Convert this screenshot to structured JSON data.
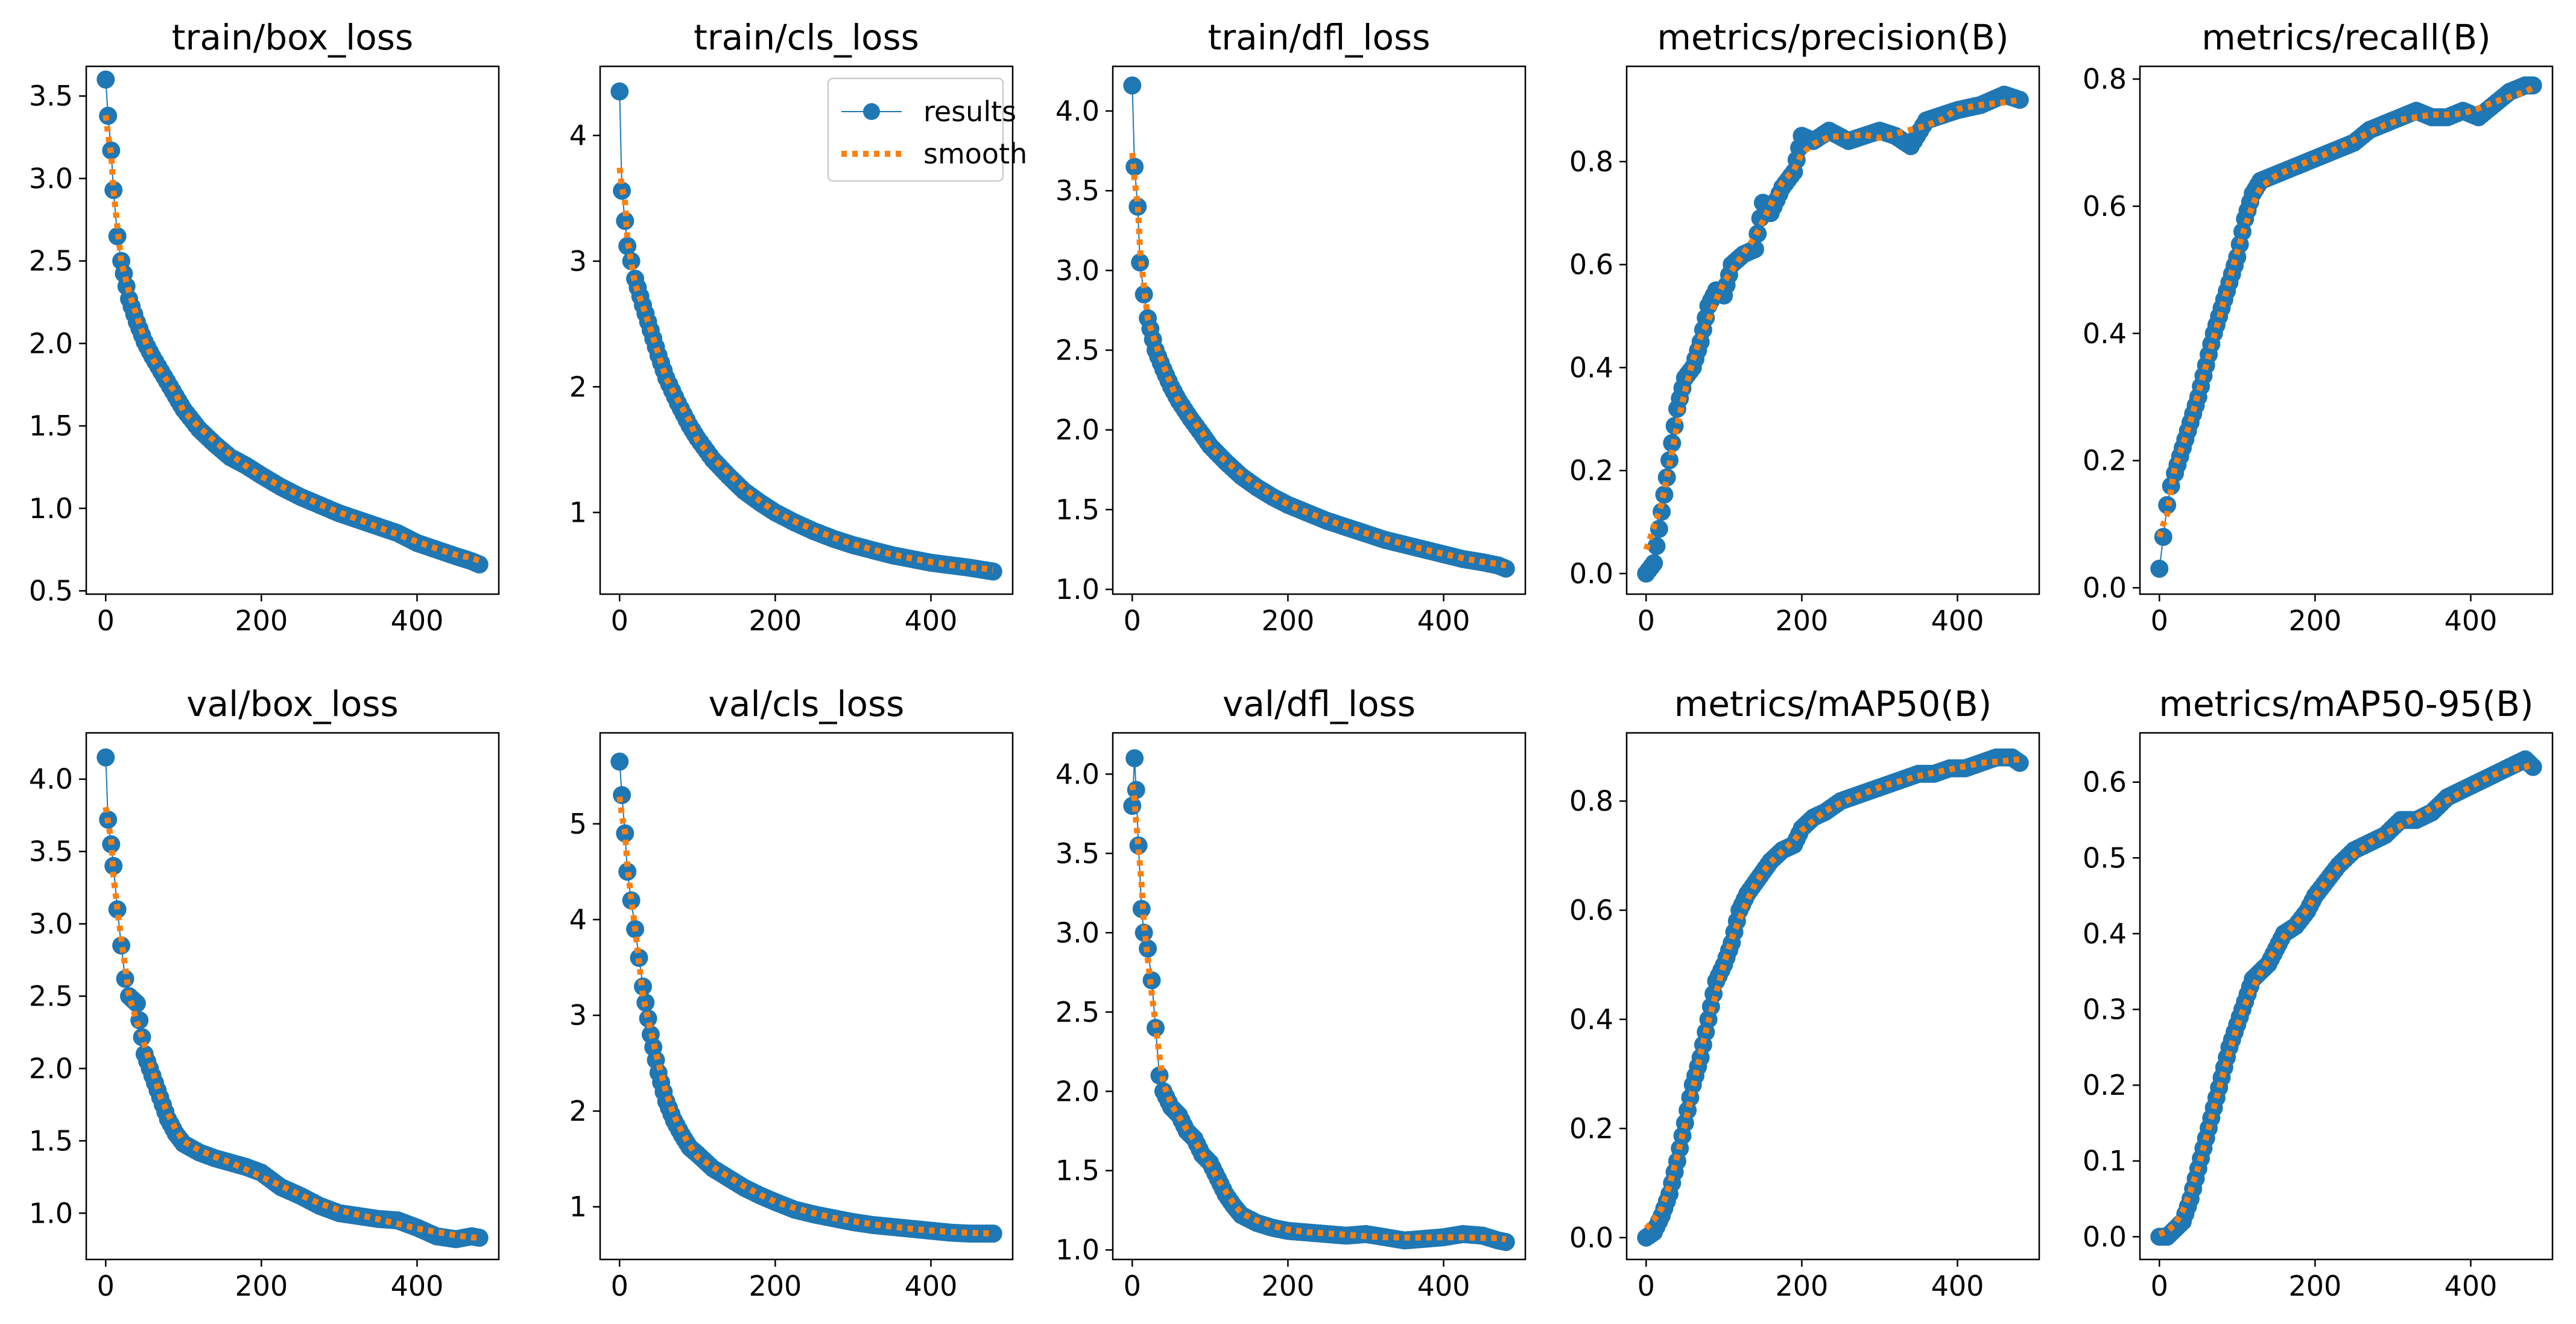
{
  "colors": {
    "results": "#1f77b4",
    "smooth": "#ff7f0e",
    "axes": "#000000",
    "background": "#ffffff"
  },
  "legend": {
    "labels": [
      "results",
      "smooth"
    ],
    "placement": "upper-right",
    "in_panel": 1
  },
  "chart_data": [
    {
      "type": "line",
      "title": "train/box_loss",
      "xlim": [
        -25,
        505
      ],
      "ylim": [
        0.48,
        3.68
      ],
      "xticks": [
        0,
        200,
        400
      ],
      "yticks": [
        0.5,
        1.0,
        1.5,
        2.0,
        2.5,
        3.0,
        3.5
      ],
      "ytick_labels": [
        "0.5",
        "1.0",
        "1.5",
        "2.0",
        "2.5",
        "3.0",
        "3.5"
      ],
      "x": [
        0,
        3,
        7,
        10,
        15,
        20,
        30,
        40,
        50,
        60,
        75,
        90,
        100,
        120,
        140,
        160,
        180,
        200,
        225,
        250,
        275,
        300,
        325,
        350,
        375,
        400,
        425,
        450,
        470,
        480
      ],
      "y": [
        3.6,
        3.38,
        3.17,
        2.93,
        2.65,
        2.5,
        2.27,
        2.13,
        2.01,
        1.92,
        1.8,
        1.68,
        1.6,
        1.48,
        1.39,
        1.31,
        1.26,
        1.2,
        1.13,
        1.07,
        1.02,
        0.97,
        0.93,
        0.89,
        0.85,
        0.79,
        0.75,
        0.71,
        0.68,
        0.66
      ]
    },
    {
      "type": "line",
      "title": "train/cls_loss",
      "xlim": [
        -25,
        505
      ],
      "ylim": [
        0.35,
        4.55
      ],
      "xticks": [
        0,
        200,
        400
      ],
      "yticks": [
        1,
        2,
        3,
        4
      ],
      "ytick_labels": [
        "1",
        "2",
        "3",
        "4"
      ],
      "x": [
        0,
        3,
        7,
        10,
        15,
        20,
        30,
        40,
        50,
        60,
        75,
        90,
        100,
        120,
        140,
        160,
        180,
        200,
        225,
        250,
        275,
        300,
        325,
        350,
        375,
        400,
        425,
        450,
        470,
        480
      ],
      "y": [
        4.35,
        3.56,
        3.32,
        3.12,
        3.0,
        2.86,
        2.65,
        2.45,
        2.25,
        2.07,
        1.87,
        1.69,
        1.59,
        1.42,
        1.29,
        1.17,
        1.08,
        1.0,
        0.92,
        0.85,
        0.79,
        0.74,
        0.7,
        0.66,
        0.63,
        0.6,
        0.58,
        0.56,
        0.54,
        0.53
      ]
    },
    {
      "type": "line",
      "title": "train/dfl_loss",
      "xlim": [
        -25,
        505
      ],
      "ylim": [
        0.97,
        4.28
      ],
      "xticks": [
        0,
        200,
        400
      ],
      "yticks": [
        1.0,
        1.5,
        2.0,
        2.5,
        3.0,
        3.5,
        4.0
      ],
      "ytick_labels": [
        "1.0",
        "1.5",
        "2.0",
        "2.5",
        "3.0",
        "3.5",
        "4.0"
      ],
      "x": [
        0,
        3,
        7,
        10,
        15,
        20,
        30,
        40,
        50,
        60,
        75,
        90,
        100,
        120,
        140,
        160,
        180,
        200,
        225,
        250,
        275,
        300,
        325,
        350,
        375,
        400,
        425,
        450,
        470,
        480
      ],
      "y": [
        4.16,
        3.65,
        3.4,
        3.05,
        2.85,
        2.7,
        2.5,
        2.38,
        2.27,
        2.18,
        2.07,
        1.97,
        1.9,
        1.8,
        1.71,
        1.64,
        1.58,
        1.53,
        1.48,
        1.43,
        1.39,
        1.35,
        1.31,
        1.28,
        1.25,
        1.22,
        1.19,
        1.17,
        1.15,
        1.13
      ]
    },
    {
      "type": "line",
      "title": "metrics/precision(B)",
      "xlim": [
        -25,
        505
      ],
      "ylim": [
        -0.04,
        0.985
      ],
      "xticks": [
        0,
        200,
        400
      ],
      "yticks": [
        0.0,
        0.2,
        0.4,
        0.6,
        0.8
      ],
      "ytick_labels": [
        "0.0",
        "0.2",
        "0.4",
        "0.6",
        "0.8"
      ],
      "x": [
        0,
        10,
        20,
        30,
        40,
        50,
        60,
        70,
        80,
        90,
        100,
        110,
        125,
        140,
        150,
        160,
        175,
        190,
        200,
        215,
        235,
        260,
        280,
        300,
        320,
        340,
        360,
        380,
        400,
        430,
        460,
        480
      ],
      "y": [
        0.0,
        0.02,
        0.12,
        0.22,
        0.32,
        0.38,
        0.4,
        0.45,
        0.52,
        0.55,
        0.54,
        0.6,
        0.62,
        0.63,
        0.72,
        0.7,
        0.75,
        0.78,
        0.85,
        0.84,
        0.86,
        0.84,
        0.85,
        0.86,
        0.85,
        0.83,
        0.88,
        0.89,
        0.9,
        0.91,
        0.93,
        0.92
      ]
    },
    {
      "type": "line",
      "title": "metrics/recall(B)",
      "xlim": [
        -25,
        505
      ],
      "ylim": [
        -0.01,
        0.82
      ],
      "xticks": [
        0,
        200,
        400
      ],
      "yticks": [
        0.0,
        0.2,
        0.4,
        0.6,
        0.8
      ],
      "ytick_labels": [
        "0.0",
        "0.2",
        "0.4",
        "0.6",
        "0.8"
      ],
      "x": [
        0,
        5,
        10,
        15,
        20,
        30,
        40,
        50,
        60,
        70,
        80,
        90,
        100,
        110,
        120,
        130,
        150,
        170,
        190,
        210,
        230,
        250,
        270,
        290,
        310,
        330,
        350,
        370,
        390,
        410,
        430,
        450,
        470,
        480
      ],
      "y": [
        0.03,
        0.08,
        0.13,
        0.16,
        0.18,
        0.22,
        0.26,
        0.3,
        0.35,
        0.4,
        0.44,
        0.48,
        0.52,
        0.58,
        0.62,
        0.64,
        0.65,
        0.66,
        0.67,
        0.68,
        0.69,
        0.7,
        0.72,
        0.73,
        0.74,
        0.75,
        0.74,
        0.74,
        0.75,
        0.74,
        0.76,
        0.78,
        0.79,
        0.79
      ]
    },
    {
      "type": "line",
      "title": "val/box_loss",
      "xlim": [
        -25,
        505
      ],
      "ylim": [
        0.68,
        4.32
      ],
      "xticks": [
        0,
        200,
        400
      ],
      "yticks": [
        1.0,
        1.5,
        2.0,
        2.5,
        3.0,
        3.5,
        4.0
      ],
      "ytick_labels": [
        "1.0",
        "1.5",
        "2.0",
        "2.5",
        "3.0",
        "3.5",
        "4.0"
      ],
      "x": [
        0,
        3,
        7,
        10,
        15,
        20,
        25,
        30,
        40,
        50,
        60,
        70,
        80,
        90,
        100,
        120,
        140,
        160,
        180,
        200,
        225,
        250,
        275,
        300,
        325,
        350,
        375,
        400,
        425,
        450,
        470,
        480
      ],
      "y": [
        4.15,
        3.72,
        3.55,
        3.4,
        3.1,
        2.85,
        2.62,
        2.5,
        2.45,
        2.1,
        1.95,
        1.8,
        1.65,
        1.55,
        1.48,
        1.42,
        1.38,
        1.35,
        1.32,
        1.28,
        1.18,
        1.12,
        1.05,
        1.0,
        0.98,
        0.96,
        0.95,
        0.9,
        0.84,
        0.82,
        0.84,
        0.83
      ]
    },
    {
      "type": "line",
      "title": "val/cls_loss",
      "xlim": [
        -25,
        505
      ],
      "ylim": [
        0.45,
        5.95
      ],
      "xticks": [
        0,
        200,
        400
      ],
      "yticks": [
        1,
        2,
        3,
        4,
        5
      ],
      "ytick_labels": [
        "1",
        "2",
        "3",
        "4",
        "5"
      ],
      "x": [
        0,
        3,
        7,
        10,
        15,
        20,
        25,
        30,
        40,
        50,
        60,
        70,
        80,
        90,
        100,
        120,
        140,
        160,
        180,
        200,
        225,
        250,
        275,
        300,
        325,
        350,
        375,
        400,
        425,
        450,
        470,
        480
      ],
      "y": [
        5.65,
        5.3,
        4.9,
        4.5,
        4.2,
        3.9,
        3.6,
        3.3,
        2.8,
        2.4,
        2.1,
        1.9,
        1.75,
        1.62,
        1.55,
        1.4,
        1.3,
        1.2,
        1.12,
        1.05,
        0.97,
        0.92,
        0.88,
        0.84,
        0.81,
        0.79,
        0.77,
        0.75,
        0.73,
        0.72,
        0.72,
        0.72
      ]
    },
    {
      "type": "line",
      "title": "val/dfl_loss",
      "xlim": [
        -25,
        505
      ],
      "ylim": [
        0.94,
        4.26
      ],
      "xticks": [
        0,
        200,
        400
      ],
      "yticks": [
        1.0,
        1.5,
        2.0,
        2.5,
        3.0,
        3.5,
        4.0
      ],
      "ytick_labels": [
        "1.0",
        "1.5",
        "2.0",
        "2.5",
        "3.0",
        "3.5",
        "4.0"
      ],
      "x": [
        0,
        3,
        5,
        8,
        12,
        15,
        20,
        25,
        30,
        35,
        40,
        50,
        60,
        70,
        80,
        90,
        100,
        110,
        120,
        130,
        140,
        160,
        180,
        200,
        225,
        250,
        275,
        300,
        325,
        350,
        375,
        400,
        425,
        450,
        470,
        480
      ],
      "y": [
        3.8,
        4.1,
        3.9,
        3.55,
        3.15,
        3.0,
        2.9,
        2.7,
        2.4,
        2.1,
        2.0,
        1.9,
        1.85,
        1.75,
        1.7,
        1.6,
        1.55,
        1.45,
        1.35,
        1.28,
        1.22,
        1.17,
        1.14,
        1.12,
        1.11,
        1.1,
        1.09,
        1.1,
        1.08,
        1.06,
        1.07,
        1.08,
        1.1,
        1.09,
        1.06,
        1.05
      ]
    },
    {
      "type": "line",
      "title": "metrics/mAP50(B)",
      "xlim": [
        -25,
        505
      ],
      "ylim": [
        -0.04,
        0.925
      ],
      "xticks": [
        0,
        200,
        400
      ],
      "yticks": [
        0.0,
        0.2,
        0.4,
        0.6,
        0.8
      ],
      "ytick_labels": [
        "0.0",
        "0.2",
        "0.4",
        "0.6",
        "0.8"
      ],
      "x": [
        0,
        10,
        20,
        30,
        40,
        50,
        60,
        70,
        80,
        90,
        100,
        110,
        120,
        130,
        140,
        150,
        160,
        175,
        190,
        200,
        215,
        230,
        250,
        270,
        290,
        310,
        330,
        350,
        370,
        390,
        410,
        430,
        450,
        470,
        480
      ],
      "y": [
        0.0,
        0.01,
        0.04,
        0.08,
        0.14,
        0.21,
        0.28,
        0.33,
        0.4,
        0.47,
        0.5,
        0.54,
        0.6,
        0.63,
        0.65,
        0.67,
        0.69,
        0.71,
        0.72,
        0.75,
        0.77,
        0.78,
        0.8,
        0.81,
        0.82,
        0.83,
        0.84,
        0.85,
        0.85,
        0.86,
        0.86,
        0.87,
        0.88,
        0.88,
        0.87
      ]
    },
    {
      "type": "line",
      "title": "metrics/mAP50-95(B)",
      "xlim": [
        -25,
        505
      ],
      "ylim": [
        -0.03,
        0.665
      ],
      "xticks": [
        0,
        200,
        400
      ],
      "yticks": [
        0.0,
        0.1,
        0.2,
        0.3,
        0.4,
        0.5,
        0.6
      ],
      "ytick_labels": [
        "0.0",
        "0.1",
        "0.2",
        "0.3",
        "0.4",
        "0.5",
        "0.6"
      ],
      "x": [
        0,
        10,
        20,
        30,
        40,
        50,
        60,
        70,
        80,
        90,
        100,
        110,
        120,
        130,
        140,
        150,
        160,
        175,
        190,
        200,
        215,
        230,
        250,
        270,
        290,
        310,
        330,
        350,
        370,
        390,
        410,
        430,
        450,
        470,
        480
      ],
      "y": [
        0.0,
        0.0,
        0.01,
        0.02,
        0.05,
        0.09,
        0.13,
        0.17,
        0.21,
        0.25,
        0.28,
        0.31,
        0.34,
        0.35,
        0.36,
        0.38,
        0.4,
        0.41,
        0.43,
        0.45,
        0.47,
        0.49,
        0.51,
        0.52,
        0.53,
        0.55,
        0.55,
        0.56,
        0.58,
        0.59,
        0.6,
        0.61,
        0.62,
        0.63,
        0.62
      ]
    }
  ]
}
